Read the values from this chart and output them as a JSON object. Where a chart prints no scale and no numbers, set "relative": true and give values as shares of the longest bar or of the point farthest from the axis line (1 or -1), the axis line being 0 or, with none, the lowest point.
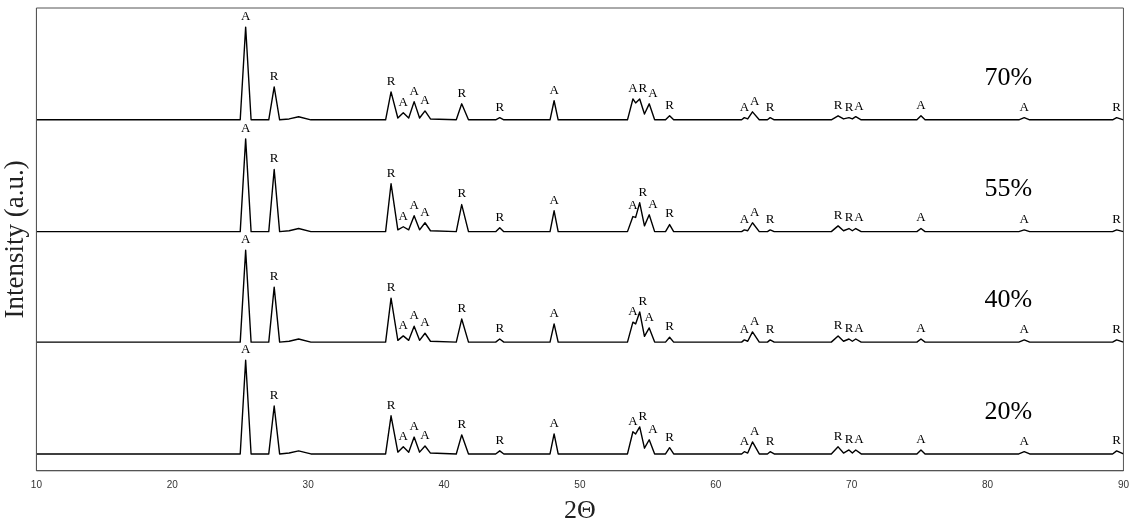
{
  "chart_data": {
    "type": "line",
    "relative": true,
    "xlabel": "2Θ",
    "ylabel": "Intensity (a.u.)",
    "xlim": [
      10,
      90
    ],
    "xticks": [
      10,
      20,
      30,
      40,
      50,
      60,
      70,
      80,
      90
    ],
    "grid": false,
    "legend": false,
    "marker": "none",
    "line_style": "solid",
    "x": [
      10,
      25.0,
      25.4,
      25.8,
      27.1,
      27.5,
      27.9,
      28.6,
      29.3,
      30.2,
      35.7,
      36.1,
      36.6,
      37.0,
      37.4,
      37.8,
      38.2,
      38.6,
      39.0,
      40.9,
      41.3,
      41.8,
      43.8,
      44.1,
      44.4,
      47.8,
      48.1,
      48.4,
      53.5,
      53.9,
      54.1,
      54.4,
      54.75,
      55.1,
      55.5,
      56.3,
      56.6,
      56.9,
      61.9,
      62.1,
      62.35,
      62.7,
      63.2,
      63.8,
      64.0,
      64.3,
      68.5,
      69.0,
      69.4,
      69.8,
      70.05,
      70.3,
      70.7,
      74.8,
      75.1,
      75.4,
      82.3,
      82.7,
      83.1,
      89.2,
      89.5,
      90
    ],
    "series": [
      {
        "name": "70%",
        "color": "#000000",
        "values": [
          0.791,
          0.791,
          1.0,
          0.791,
          0.791,
          0.865,
          0.791,
          0.793,
          0.798,
          0.791,
          0.791,
          0.854,
          0.795,
          0.807,
          0.795,
          0.832,
          0.795,
          0.811,
          0.793,
          0.791,
          0.827,
          0.791,
          0.791,
          0.796,
          0.791,
          0.791,
          0.834,
          0.791,
          0.791,
          0.838,
          0.829,
          0.838,
          0.804,
          0.827,
          0.791,
          0.791,
          0.8,
          0.791,
          0.791,
          0.796,
          0.793,
          0.809,
          0.791,
          0.791,
          0.796,
          0.791,
          0.791,
          0.8,
          0.793,
          0.796,
          0.793,
          0.798,
          0.791,
          0.791,
          0.8,
          0.791,
          0.791,
          0.796,
          0.791,
          0.791,
          0.796,
          0.791
        ]
      },
      {
        "name": "55%",
        "color": "#000000",
        "values": [
          0.539,
          0.539,
          0.748,
          0.539,
          0.539,
          0.679,
          0.539,
          0.541,
          0.546,
          0.539,
          0.539,
          0.647,
          0.543,
          0.55,
          0.543,
          0.575,
          0.543,
          0.559,
          0.541,
          0.539,
          0.6,
          0.539,
          0.539,
          0.548,
          0.539,
          0.539,
          0.586,
          0.539,
          0.539,
          0.573,
          0.571,
          0.604,
          0.552,
          0.577,
          0.539,
          0.539,
          0.555,
          0.539,
          0.539,
          0.543,
          0.541,
          0.559,
          0.539,
          0.539,
          0.543,
          0.539,
          0.539,
          0.552,
          0.541,
          0.546,
          0.541,
          0.546,
          0.539,
          0.539,
          0.546,
          0.539,
          0.539,
          0.543,
          0.539,
          0.539,
          0.543,
          0.539
        ]
      },
      {
        "name": "40%",
        "color": "#000000",
        "values": [
          0.29,
          0.29,
          0.497,
          0.29,
          0.29,
          0.414,
          0.29,
          0.292,
          0.297,
          0.29,
          0.29,
          0.389,
          0.294,
          0.304,
          0.294,
          0.326,
          0.294,
          0.31,
          0.292,
          0.29,
          0.342,
          0.29,
          0.29,
          0.297,
          0.29,
          0.29,
          0.331,
          0.29,
          0.29,
          0.335,
          0.331,
          0.358,
          0.303,
          0.322,
          0.29,
          0.29,
          0.301,
          0.29,
          0.29,
          0.295,
          0.292,
          0.313,
          0.29,
          0.29,
          0.295,
          0.29,
          0.29,
          0.304,
          0.292,
          0.297,
          0.292,
          0.297,
          0.29,
          0.29,
          0.297,
          0.29,
          0.29,
          0.295,
          0.29,
          0.29,
          0.295,
          0.29
        ]
      },
      {
        "name": "20%",
        "color": "#000000",
        "values": [
          0.038,
          0.038,
          0.249,
          0.038,
          0.038,
          0.146,
          0.038,
          0.04,
          0.045,
          0.038,
          0.038,
          0.124,
          0.042,
          0.054,
          0.042,
          0.076,
          0.042,
          0.056,
          0.04,
          0.038,
          0.081,
          0.038,
          0.038,
          0.045,
          0.038,
          0.038,
          0.083,
          0.038,
          0.038,
          0.088,
          0.083,
          0.099,
          0.051,
          0.07,
          0.038,
          0.038,
          0.052,
          0.038,
          0.038,
          0.043,
          0.04,
          0.065,
          0.038,
          0.038,
          0.043,
          0.038,
          0.038,
          0.054,
          0.04,
          0.047,
          0.04,
          0.047,
          0.038,
          0.038,
          0.047,
          0.038,
          0.038,
          0.043,
          0.038,
          0.038,
          0.045,
          0.038
        ]
      }
    ],
    "annotations": [
      {
        "text": "A",
        "x": 25.4,
        "y": 1.0
      },
      {
        "text": "R",
        "x": 27.5,
        "y": 0.865
      },
      {
        "text": "R",
        "x": 36.1,
        "y": 0.854
      },
      {
        "text": "A",
        "x": 37.0,
        "y": 0.807
      },
      {
        "text": "A",
        "x": 37.8,
        "y": 0.832
      },
      {
        "text": "A",
        "x": 38.6,
        "y": 0.811
      },
      {
        "text": "R",
        "x": 41.3,
        "y": 0.827
      },
      {
        "text": "R",
        "x": 44.1,
        "y": 0.796
      },
      {
        "text": "A",
        "x": 48.1,
        "y": 0.834
      },
      {
        "text": "A",
        "x": 53.9,
        "y": 0.838
      },
      {
        "text": "R",
        "x": 54.4,
        "y": 0.838
      },
      {
        "text": "A",
        "x": 55.1,
        "y": 0.827
      },
      {
        "text": "R",
        "x": 56.6,
        "y": 0.8
      },
      {
        "text": "A",
        "x": 62.1,
        "y": 0.796
      },
      {
        "text": "A",
        "x": 62.7,
        "y": 0.809
      },
      {
        "text": "R",
        "x": 64.0,
        "y": 0.796
      },
      {
        "text": "R",
        "x": 69.0,
        "y": 0.8
      },
      {
        "text": "R",
        "x": 69.8,
        "y": 0.796
      },
      {
        "text": "A",
        "x": 70.3,
        "y": 0.798
      },
      {
        "text": "A",
        "x": 75.1,
        "y": 0.8
      },
      {
        "text": "A",
        "x": 82.7,
        "y": 0.796
      },
      {
        "text": "R",
        "x": 89.5,
        "y": 0.796
      },
      {
        "text": "A",
        "x": 25.4,
        "y": 0.748
      },
      {
        "text": "R",
        "x": 27.5,
        "y": 0.679
      },
      {
        "text": "R",
        "x": 36.1,
        "y": 0.647
      },
      {
        "text": "A",
        "x": 37.0,
        "y": 0.55
      },
      {
        "text": "A",
        "x": 37.8,
        "y": 0.575
      },
      {
        "text": "A",
        "x": 38.6,
        "y": 0.559
      },
      {
        "text": "R",
        "x": 41.3,
        "y": 0.6
      },
      {
        "text": "R",
        "x": 44.1,
        "y": 0.548
      },
      {
        "text": "A",
        "x": 48.1,
        "y": 0.586
      },
      {
        "text": "A",
        "x": 53.9,
        "y": 0.573
      },
      {
        "text": "R",
        "x": 54.4,
        "y": 0.604
      },
      {
        "text": "A",
        "x": 55.1,
        "y": 0.577
      },
      {
        "text": "R",
        "x": 56.6,
        "y": 0.555
      },
      {
        "text": "A",
        "x": 62.1,
        "y": 0.543
      },
      {
        "text": "A",
        "x": 62.7,
        "y": 0.559
      },
      {
        "text": "R",
        "x": 64.0,
        "y": 0.543
      },
      {
        "text": "R",
        "x": 69.0,
        "y": 0.552
      },
      {
        "text": "R",
        "x": 69.8,
        "y": 0.546
      },
      {
        "text": "A",
        "x": 70.3,
        "y": 0.546
      },
      {
        "text": "A",
        "x": 75.1,
        "y": 0.546
      },
      {
        "text": "A",
        "x": 82.7,
        "y": 0.543
      },
      {
        "text": "R",
        "x": 89.5,
        "y": 0.543
      },
      {
        "text": "A",
        "x": 25.4,
        "y": 0.497
      },
      {
        "text": "R",
        "x": 27.5,
        "y": 0.414
      },
      {
        "text": "R",
        "x": 36.1,
        "y": 0.389
      },
      {
        "text": "A",
        "x": 37.0,
        "y": 0.304
      },
      {
        "text": "A",
        "x": 37.8,
        "y": 0.326
      },
      {
        "text": "A",
        "x": 38.6,
        "y": 0.31
      },
      {
        "text": "R",
        "x": 41.3,
        "y": 0.342
      },
      {
        "text": "R",
        "x": 44.1,
        "y": 0.297
      },
      {
        "text": "A",
        "x": 48.1,
        "y": 0.331
      },
      {
        "text": "A",
        "x": 53.9,
        "y": 0.335
      },
      {
        "text": "R",
        "x": 54.4,
        "y": 0.358
      },
      {
        "text": "A",
        "x": 55.1,
        "y": 0.322
      },
      {
        "text": "R",
        "x": 56.6,
        "y": 0.301
      },
      {
        "text": "A",
        "x": 62.1,
        "y": 0.295
      },
      {
        "text": "A",
        "x": 62.7,
        "y": 0.313
      },
      {
        "text": "R",
        "x": 64.0,
        "y": 0.295
      },
      {
        "text": "R",
        "x": 69.0,
        "y": 0.304
      },
      {
        "text": "R",
        "x": 69.8,
        "y": 0.297
      },
      {
        "text": "A",
        "x": 70.3,
        "y": 0.297
      },
      {
        "text": "A",
        "x": 75.1,
        "y": 0.297
      },
      {
        "text": "A",
        "x": 82.7,
        "y": 0.295
      },
      {
        "text": "R",
        "x": 89.5,
        "y": 0.295
      },
      {
        "text": "A",
        "x": 25.4,
        "y": 0.249
      },
      {
        "text": "R",
        "x": 27.5,
        "y": 0.146
      },
      {
        "text": "R",
        "x": 36.1,
        "y": 0.124
      },
      {
        "text": "A",
        "x": 37.0,
        "y": 0.054
      },
      {
        "text": "A",
        "x": 37.8,
        "y": 0.076
      },
      {
        "text": "A",
        "x": 38.6,
        "y": 0.056
      },
      {
        "text": "R",
        "x": 41.3,
        "y": 0.081
      },
      {
        "text": "R",
        "x": 44.1,
        "y": 0.045
      },
      {
        "text": "A",
        "x": 48.1,
        "y": 0.083
      },
      {
        "text": "A",
        "x": 53.9,
        "y": 0.088
      },
      {
        "text": "R",
        "x": 54.4,
        "y": 0.099
      },
      {
        "text": "A",
        "x": 55.1,
        "y": 0.07
      },
      {
        "text": "R",
        "x": 56.6,
        "y": 0.052
      },
      {
        "text": "A",
        "x": 62.1,
        "y": 0.043
      },
      {
        "text": "A",
        "x": 62.7,
        "y": 0.065
      },
      {
        "text": "R",
        "x": 64.0,
        "y": 0.043
      },
      {
        "text": "R",
        "x": 69.0,
        "y": 0.054
      },
      {
        "text": "R",
        "x": 69.8,
        "y": 0.047
      },
      {
        "text": "A",
        "x": 70.3,
        "y": 0.047
      },
      {
        "text": "A",
        "x": 75.1,
        "y": 0.047
      },
      {
        "text": "A",
        "x": 82.7,
        "y": 0.043
      },
      {
        "text": "R",
        "x": 89.5,
        "y": 0.045
      }
    ]
  }
}
